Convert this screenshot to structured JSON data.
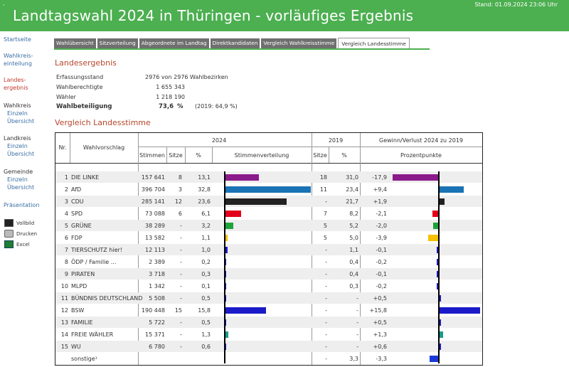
{
  "header": {
    "title": "Landtagswahl 2024 in Thüringen - vorläufiges Ergebnis",
    "stand": "Stand: 01.09.2024  23:06 Uhr",
    "corner_mark": ","
  },
  "sidebar": {
    "startseite": "Startseite",
    "wahlkreis_einteilung": [
      "Wahlkreis-",
      "einteilung"
    ],
    "landes_ergebnis": [
      "Landes-",
      "ergebnis"
    ],
    "wahlkreis": "Wahlkreis",
    "landkreis": "Landkreis",
    "gemeinde": "Gemeinde",
    "einzeln": "Einzeln",
    "uebersicht": "Übersicht",
    "praesentation": "Präsentation",
    "vollbild": "Vollbild",
    "drucken": "Drucken",
    "excel": "Excel"
  },
  "tabs": [
    "Wahlübersicht",
    "Sitzverteilung",
    "Abgeordnete im Landtag",
    "Direktkandidaten",
    "Vergleich Wahlkreisstimme",
    "Vergleich Landesstimme"
  ],
  "active_tab": 5,
  "landesergebnis": {
    "title": "Landesergebnis",
    "erfassungsstand_label": "Erfassungsstand",
    "erfassungsstand_value": "2976 von 2976 Wahlbezirken",
    "wahlberechtigte_label": "Wahlberechtigte",
    "wahlberechtigte_value": "1 655 343",
    "waehler_label": "Wähler",
    "waehler_value": "1 218 190",
    "wahlbeteiligung_label": "Wahlbeteiligung",
    "wahlbeteiligung_value": "73,6",
    "wahlbeteiligung_unit": "%",
    "wahlbeteiligung_2019": "(2019: 64,9 %)"
  },
  "vergleich": {
    "title": "Vergleich Landesstimme",
    "headers": {
      "nr": "Nr.",
      "wahlvorschlag": "Wahlvorschlag",
      "y2024": "2024",
      "y2019": "2019",
      "gewinn": "Gewinn/Verlust 2024 zu 2019",
      "stimmen": "Stimmen",
      "sitze": "Sitze",
      "pct": "%",
      "verteilung": "Stimmenverteilung",
      "sitze19": "Sitze",
      "pct19": "%",
      "prozentpunkte": "Prozentpunkte"
    },
    "rows": [
      {
        "nr": "1",
        "name": "DIE LINKE",
        "stimmen": "157 641",
        "sitze": "8",
        "pct": "13,1",
        "pct_val": 13.1,
        "sitze19": "18",
        "pct19": "31,0",
        "diff": "-17,9",
        "diff_val": -17.9,
        "color": "#8b1a8b"
      },
      {
        "nr": "2",
        "name": "AfD",
        "stimmen": "396 704",
        "sitze": "3",
        "pct": "32,8",
        "pct_val": 32.8,
        "sitze19": "11",
        "pct19": "23,4",
        "diff": "+9,4",
        "diff_val": 9.4,
        "color": "#1a73b5"
      },
      {
        "nr": "3",
        "name": "CDU",
        "stimmen": "285 141",
        "sitze": "12",
        "pct": "23,6",
        "pct_val": 23.6,
        "sitze19": "-",
        "pct19": "21,7",
        "diff": "+1,9",
        "diff_val": 1.9,
        "color": "#222222"
      },
      {
        "nr": "4",
        "name": "SPD",
        "stimmen": "73 088",
        "sitze": "6",
        "pct": "6,1",
        "pct_val": 6.1,
        "sitze19": "7",
        "pct19": "8,2",
        "diff": "-2,1",
        "diff_val": -2.1,
        "color": "#e3001b"
      },
      {
        "nr": "5",
        "name": "GRÜNE",
        "stimmen": "38 289",
        "sitze": "-",
        "pct": "3,2",
        "pct_val": 3.2,
        "sitze19": "5",
        "pct19": "5,2",
        "diff": "-2,0",
        "diff_val": -2.0,
        "color": "#1ea33a"
      },
      {
        "nr": "6",
        "name": "FDP",
        "stimmen": "13 582",
        "sitze": "-",
        "pct": "1,1",
        "pct_val": 1.1,
        "sitze19": "5",
        "pct19": "5,0",
        "diff": "-3,9",
        "diff_val": -3.9,
        "color": "#f5c000"
      },
      {
        "nr": "7",
        "name": "TIERSCHUTZ hier!",
        "stimmen": "12 113",
        "sitze": "-",
        "pct": "1,0",
        "pct_val": 1.0,
        "sitze19": "-",
        "pct19": "1,1",
        "diff": "-0,1",
        "diff_val": -0.1,
        "color": "#1a1ac8"
      },
      {
        "nr": "8",
        "name": "ÖDP / Familie ...",
        "stimmen": "2 389",
        "sitze": "-",
        "pct": "0,2",
        "pct_val": 0.2,
        "sitze19": "-",
        "pct19": "0,4",
        "diff": "-0,2",
        "diff_val": -0.2,
        "color": "#1a1ac8"
      },
      {
        "nr": "9",
        "name": "PIRATEN",
        "stimmen": "3 718",
        "sitze": "-",
        "pct": "0,3",
        "pct_val": 0.3,
        "sitze19": "-",
        "pct19": "0,4",
        "diff": "-0,1",
        "diff_val": -0.1,
        "color": "#1a1ac8"
      },
      {
        "nr": "10",
        "name": "MLPD",
        "stimmen": "1 342",
        "sitze": "-",
        "pct": "0,1",
        "pct_val": 0.1,
        "sitze19": "-",
        "pct19": "0,3",
        "diff": "-0,2",
        "diff_val": -0.2,
        "color": "#1a1ac8"
      },
      {
        "nr": "11",
        "name": "BÜNDNIS DEUTSCHLAND",
        "stimmen": "5 508",
        "sitze": "-",
        "pct": "0,5",
        "pct_val": 0.5,
        "sitze19": "-",
        "pct19": "-",
        "diff": "+0,5",
        "diff_val": 0.5,
        "color": "#1a1ac8"
      },
      {
        "nr": "12",
        "name": "BSW",
        "stimmen": "190 448",
        "sitze": "15",
        "pct": "15,8",
        "pct_val": 15.8,
        "sitze19": "-",
        "pct19": "-",
        "diff": "+15,8",
        "diff_val": 15.8,
        "color": "#1a1ac8"
      },
      {
        "nr": "13",
        "name": "FAMILIE",
        "stimmen": "5 722",
        "sitze": "-",
        "pct": "0,5",
        "pct_val": 0.5,
        "sitze19": "-",
        "pct19": "-",
        "diff": "+0,5",
        "diff_val": 0.5,
        "color": "#1a1ac8"
      },
      {
        "nr": "14",
        "name": "FREIE WÄHLER",
        "stimmen": "15 371",
        "sitze": "-",
        "pct": "1,3",
        "pct_val": 1.3,
        "sitze19": "-",
        "pct19": "-",
        "diff": "+1,3",
        "diff_val": 1.3,
        "color": "#1a9a8a"
      },
      {
        "nr": "15",
        "name": "WU",
        "stimmen": "6 780",
        "sitze": "-",
        "pct": "0,6",
        "pct_val": 0.6,
        "sitze19": "-",
        "pct19": "-",
        "diff": "+0,6",
        "diff_val": 0.6,
        "color": "#1a1ac8"
      },
      {
        "nr": "",
        "name": "sonstige¹",
        "stimmen": "",
        "sitze": "",
        "pct": "",
        "pct_val": 0,
        "sitze19": "-",
        "pct19": "3,3",
        "diff": "-3,3",
        "diff_val": -3.3,
        "color": "#1a3ad8"
      }
    ]
  }
}
